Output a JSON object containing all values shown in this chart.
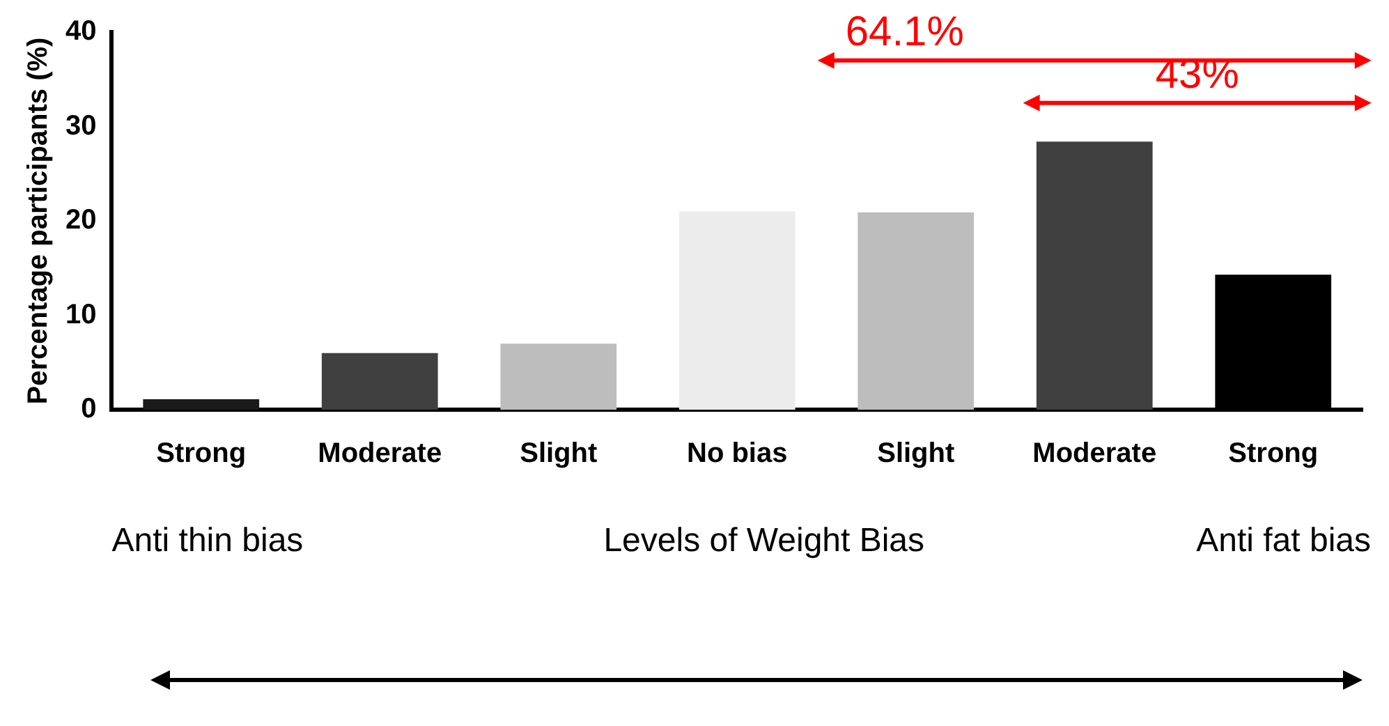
{
  "chart_data": {
    "type": "bar",
    "xlabel": "Levels of Weight Bias",
    "ylabel": "Percentage participants (%)",
    "categories": [
      "Strong",
      "Moderate",
      "Slight",
      "No bias",
      "Slight",
      "Moderate",
      "Strong"
    ],
    "values": [
      1.1,
      6.0,
      7.0,
      21.0,
      20.9,
      28.4,
      14.3
    ],
    "colors": [
      "#1a1a1a",
      "#404040",
      "#bdbdbd",
      "#ececec",
      "#bdbdbd",
      "#404040",
      "#000000"
    ],
    "ylim": [
      0,
      40
    ],
    "yticks": [
      0,
      10,
      20,
      30,
      40
    ],
    "grid": false,
    "annotations": [
      "64.1%",
      "43%",
      "Anti thin bias",
      "Anti fat bias"
    ]
  }
}
